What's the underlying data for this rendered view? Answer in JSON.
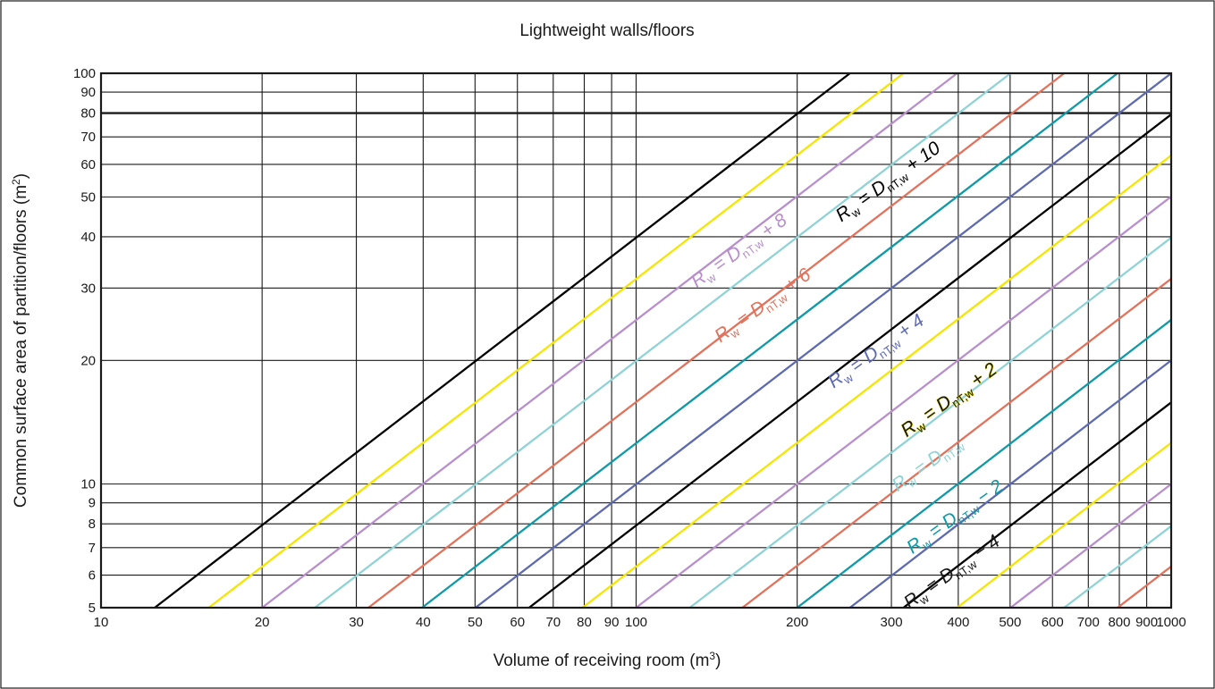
{
  "chart_data": {
    "type": "line",
    "title": "Lightweight walls/floors",
    "xlabel": "Volume of receiving room (m",
    "xlabel_sup": "3",
    "xlabel_end": ")",
    "ylabel": "Common surface area of partition/floors (m",
    "ylabel_sup": "2",
    "ylabel_end": ")",
    "x_scale": "log",
    "y_scale": "log",
    "xlim": [
      10,
      1000
    ],
    "ylim": [
      5,
      100
    ],
    "grid": true,
    "x_ticks": [
      10,
      20,
      30,
      40,
      50,
      60,
      70,
      80,
      90,
      100,
      200,
      300,
      400,
      500,
      600,
      700,
      800,
      900,
      1000
    ],
    "y_ticks": [
      5,
      6,
      7,
      8,
      9,
      10,
      20,
      30,
      40,
      50,
      60,
      70,
      80,
      90,
      100
    ],
    "reference_line_y": 80,
    "series": [
      {
        "color": "#000000",
        "points": [
          [
            12.6,
            5
          ],
          [
            251,
            100
          ]
        ]
      },
      {
        "color": "#f4e600",
        "points": [
          [
            15.9,
            5
          ],
          [
            316,
            100
          ]
        ]
      },
      {
        "color": "#b88fcb",
        "points": [
          [
            20,
            5
          ],
          [
            398,
            100
          ]
        ]
      },
      {
        "color": "#8fd3d6",
        "points": [
          [
            25.1,
            5
          ],
          [
            501,
            100
          ]
        ]
      },
      {
        "color": "#e2725b",
        "points": [
          [
            31.6,
            5
          ],
          [
            631,
            100
          ]
        ]
      },
      {
        "color": "#0f9aa6",
        "points": [
          [
            39.8,
            5
          ],
          [
            794,
            100
          ]
        ]
      },
      {
        "color": "#5e6aaf",
        "points": [
          [
            50.1,
            5
          ],
          [
            1000,
            100
          ]
        ]
      },
      {
        "color": "#000000",
        "points": [
          [
            63.1,
            5
          ],
          [
            1000,
            79.4
          ]
        ]
      },
      {
        "color": "#f4e600",
        "points": [
          [
            79.4,
            5
          ],
          [
            1000,
            63.1
          ]
        ]
      },
      {
        "color": "#b88fcb",
        "points": [
          [
            100,
            5
          ],
          [
            1000,
            50.1
          ]
        ]
      },
      {
        "color": "#8fd3d6",
        "points": [
          [
            126,
            5
          ],
          [
            1000,
            39.8
          ]
        ]
      },
      {
        "color": "#e2725b",
        "points": [
          [
            158,
            5
          ],
          [
            1000,
            31.6
          ]
        ]
      },
      {
        "color": "#0f9aa6",
        "points": [
          [
            200,
            5
          ],
          [
            1000,
            25.1
          ]
        ]
      },
      {
        "color": "#5e6aaf",
        "points": [
          [
            251,
            5
          ],
          [
            1000,
            20
          ]
        ]
      },
      {
        "color": "#000000",
        "points": [
          [
            316,
            5
          ],
          [
            1000,
            15.8
          ]
        ]
      },
      {
        "color": "#f4e600",
        "points": [
          [
            398,
            5
          ],
          [
            1000,
            12.6
          ]
        ]
      },
      {
        "color": "#b88fcb",
        "points": [
          [
            501,
            5
          ],
          [
            1000,
            10
          ]
        ]
      },
      {
        "color": "#8fd3d6",
        "points": [
          [
            631,
            5
          ],
          [
            1000,
            7.9
          ]
        ]
      },
      {
        "color": "#e2725b",
        "points": [
          [
            794,
            5
          ],
          [
            1000,
            6.3
          ]
        ]
      }
    ],
    "annotations": [
      {
        "id": "p10",
        "pre": "R",
        "mid": " = D",
        "sub2": "nT,w",
        "post": " + 10",
        "color": "#000000",
        "stroke": "",
        "x": 300,
        "y": 53,
        "angle": -35.5
      },
      {
        "id": "p8",
        "pre": "R",
        "mid": " = D",
        "sub2": "nT,w",
        "post": " + 8",
        "color": "#b88fcb",
        "stroke": "",
        "x": 158,
        "y": 36,
        "angle": -35.5
      },
      {
        "id": "p6",
        "pre": "R",
        "mid": " = D",
        "sub2": "nT,w",
        "post": " + 6",
        "color": "#e2725b",
        "stroke": "",
        "x": 175,
        "y": 26.5,
        "angle": -35.5
      },
      {
        "id": "p4",
        "pre": "R",
        "mid": " = D",
        "sub2": "nT,w",
        "post": " + 4",
        "color": "#5e6aaf",
        "stroke": "",
        "x": 285,
        "y": 20.5,
        "angle": -35.5
      },
      {
        "id": "p2",
        "pre": "R",
        "mid": " = D",
        "sub2": "nT,w",
        "post": " + 2",
        "color": "#1a1a1a",
        "stroke": "#f4e600",
        "x": 390,
        "y": 15.6,
        "angle": -35.5
      },
      {
        "id": "p0",
        "pre": "R",
        "mid": " = D",
        "sub2": "nT,w",
        "post": "",
        "color": "#8fd3d6",
        "stroke": "",
        "x": 355,
        "y": 10.9,
        "angle": -35.5
      },
      {
        "id": "m2",
        "pre": "R",
        "mid": " = D",
        "sub2": "nT,w",
        "post": " − 2",
        "color": "#0f9aa6",
        "stroke": "",
        "x": 400,
        "y": 8.1,
        "angle": -35.5
      },
      {
        "id": "m4",
        "pre": "R",
        "mid": " = D",
        "sub2": "nT,w",
        "post": " − 4",
        "color": "#1a1a1a",
        "stroke": "",
        "x": 395,
        "y": 5.95,
        "angle": -35.5
      }
    ],
    "label_sub1": "w"
  }
}
